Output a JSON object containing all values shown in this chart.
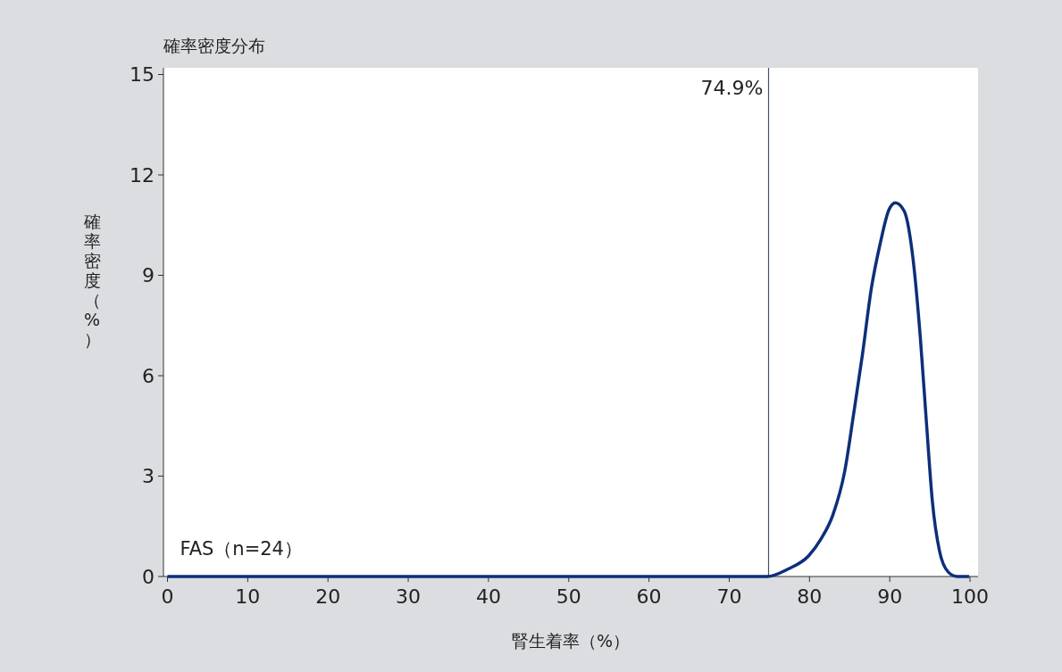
{
  "chart_data": {
    "type": "line",
    "title": "確率密度分布",
    "xlabel": "腎生着率（%）",
    "ylabel": "確率密度（%）",
    "x": [
      0,
      74.7,
      77.3,
      79.9,
      81.4,
      82.9,
      84.4,
      85.5,
      86.6,
      87.7,
      88.8,
      89.9,
      90.7,
      91.8,
      92.9,
      93.8,
      94.6,
      95.3,
      96.2,
      97.3,
      98.4,
      99.9
    ],
    "series": [
      {
        "color": "#0d2f7a",
        "values": [
          0,
          0,
          0.22,
          0.62,
          1.11,
          1.83,
          3.16,
          4.86,
          6.64,
          8.6,
          9.94,
          10.96,
          11.17,
          10.92,
          9.49,
          7.17,
          4.5,
          2.27,
          0.76,
          0.13,
          0,
          0
        ]
      }
    ],
    "xlim": [
      -0.5,
      101
    ],
    "xticks": [
      0,
      10,
      20,
      30,
      40,
      50,
      60,
      70,
      80,
      90,
      100
    ],
    "ylim": [
      0,
      15.2
    ],
    "yticks": [
      0,
      3,
      6,
      9,
      12,
      15
    ],
    "ref_lines": [
      {
        "axis": "x",
        "value": 74.9,
        "label": "74.9%",
        "color": "#44506a"
      }
    ],
    "annotations": [
      {
        "text": "FAS（n=24）",
        "x": 0,
        "y": 0
      }
    ],
    "grid": false,
    "marker": "none",
    "line_style": "solid"
  }
}
